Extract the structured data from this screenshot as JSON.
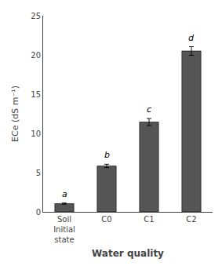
{
  "chart_data": {
    "type": "bar",
    "categories": [
      "Soil\nInitial\nstate",
      "C0",
      "C1",
      "C2"
    ],
    "values": [
      1.05,
      5.85,
      11.45,
      20.5
    ],
    "errors": [
      0.08,
      0.22,
      0.45,
      0.55
    ],
    "annotations": [
      {
        "category": "Soil\nInitial\nstate",
        "text": "a"
      },
      {
        "category": "C0",
        "text": "b"
      },
      {
        "category": "C1",
        "text": "c"
      },
      {
        "category": "C2",
        "text": "d"
      }
    ],
    "color": "#555555",
    "ylabel": "ECe (dS m⁻¹)",
    "xlabel": "Water quality",
    "ylim": [
      0,
      25
    ],
    "yticks": [
      0,
      5,
      10,
      15,
      20,
      25
    ],
    "grid": false
  }
}
